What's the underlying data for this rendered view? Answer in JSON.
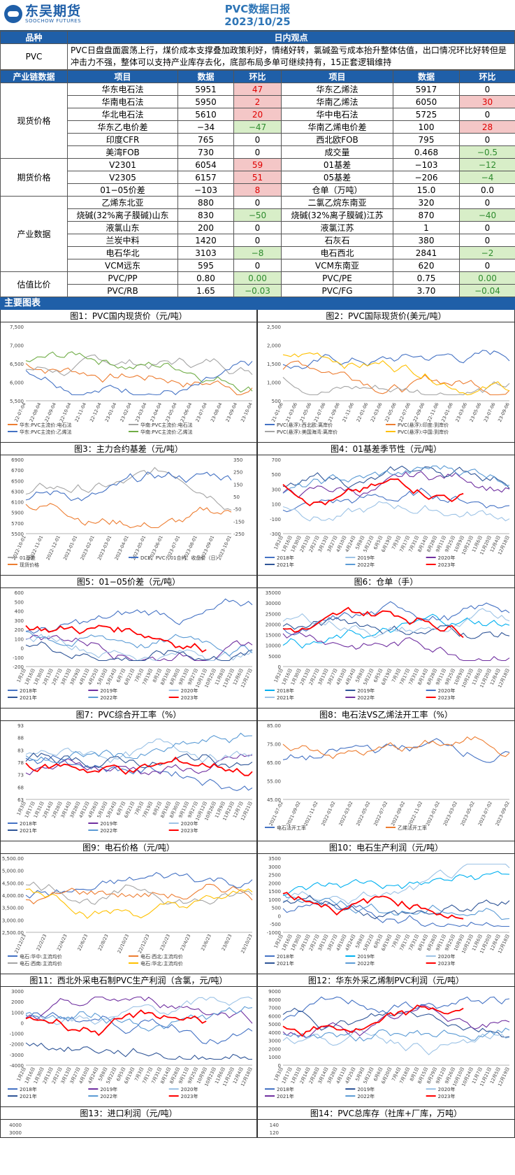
{
  "header": {
    "logo_cn": "东吴期货",
    "logo_en": "SOOCHOW FUTURES",
    "title": "PVC数据日报",
    "date": "2023/10/25"
  },
  "view": {
    "col1": "品种",
    "col2": "日内观点",
    "product": "PVC",
    "text": "PVC日盘盘面震荡上行，煤价成本支撑叠加政策利好，情绪好转，氯碱盈亏成本抬升整体估值，出口情况环比好转但是冲击力不强，整体可以支持产业库存去化，底部布局多单可继续持有，15正套逻辑维持"
  },
  "table": {
    "headers": [
      "产业链数据",
      "项目",
      "数据",
      "环比",
      "项目",
      "数据",
      "环比"
    ],
    "groups": [
      {
        "name": "现货价格",
        "rows": [
          [
            "华东电石法",
            "5951",
            "47",
            "up",
            "华东乙烯法",
            "5917",
            "0",
            ""
          ],
          [
            "华南电石法",
            "5950",
            "2",
            "up",
            "华南乙烯法",
            "6050",
            "30",
            "up"
          ],
          [
            "华北电石法",
            "5610",
            "20",
            "up",
            "华中电石法",
            "5725",
            "0",
            ""
          ],
          [
            "华东乙电价差",
            "−34",
            "−47",
            "down",
            "华南乙烯电价差",
            "100",
            "28",
            "up"
          ],
          [
            "印度CFR",
            "765",
            "0",
            "",
            "西北欧FOB",
            "795",
            "0",
            ""
          ],
          [
            "美湾FOB",
            "730",
            "0",
            "",
            "成交量",
            "0.468",
            "−0.5",
            "down"
          ]
        ]
      },
      {
        "name": "期货价格",
        "rows": [
          [
            "V2301",
            "6054",
            "59",
            "up",
            "01基差",
            "−103",
            "−12",
            "down"
          ],
          [
            "V2305",
            "6157",
            "51",
            "up",
            "05基差",
            "−206",
            "−4",
            "down"
          ],
          [
            "01−05价差",
            "−103",
            "8",
            "up",
            "仓单（万吨）",
            "15.0",
            "0.0",
            ""
          ]
        ]
      },
      {
        "name": "产业数据",
        "rows": [
          [
            "乙烯东北亚",
            "880",
            "0",
            "",
            "二氯乙烷东南亚",
            "320",
            "0",
            ""
          ],
          [
            "烧碱(32%离子膜碱)山东",
            "830",
            "−50",
            "down",
            "烧碱(32%离子膜碱)江苏",
            "870",
            "−40",
            "down"
          ],
          [
            "液氯山东",
            "200",
            "0",
            "",
            "液氯江苏",
            "1",
            "0",
            ""
          ],
          [
            "兰炭中料",
            "1420",
            "0",
            "",
            "石灰石",
            "380",
            "0",
            ""
          ],
          [
            "电石华北",
            "3103",
            "−8",
            "down",
            "电石西北",
            "2841",
            "−2",
            "down"
          ],
          [
            "VCM远东",
            "595",
            "0",
            "",
            "VCM东南亚",
            "620",
            "0",
            ""
          ]
        ]
      },
      {
        "name": "估值比价",
        "rows": [
          [
            "PVC/PP",
            "0.80",
            "0.00",
            "down",
            "PVC/PE",
            "0.75",
            "0.00",
            "down"
          ],
          [
            "PVC/RB",
            "1.65",
            "−0.03",
            "down",
            "PVC/FG",
            "3.70",
            "−0.04",
            "down"
          ]
        ]
      }
    ]
  },
  "section": "主要图表",
  "charts": [
    {
      "title": "图1：PVC国内现货价（元/吨）",
      "yticks": [
        "7,500",
        "7,000",
        "6,500",
        "6,000",
        "5,500"
      ],
      "xticks": [
        "22-07-04",
        "22-08-04",
        "22-09-04",
        "22-10-04",
        "22-11-04",
        "22-12-04",
        "23-01-04",
        "23-02-04",
        "23-03-04",
        "23-04-04",
        "23-05-04",
        "23-06-04",
        "23-07-04",
        "23-08-04",
        "23-09-04",
        "23-10-04"
      ],
      "legend": [
        "华东:PVC主流价:电石法",
        "华南:PVC主流价:电石法",
        "华东:PVC主流价:乙烯法",
        "华南:PVC主流价:乙烯法"
      ],
      "colors": [
        "#ED7D31",
        "#A5A5A5",
        "#4472C4",
        "#70AD47"
      ]
    },
    {
      "title": "图2：PVC国际现货价(美元/吨）",
      "yticks": [
        "2,500",
        "2,000",
        "1,500",
        "1,000",
        "500"
      ],
      "xticks": [
        "21-01-06",
        "21-03-06",
        "21-05-06",
        "21-07-06",
        "21-09-06",
        "21-11-06",
        "22-01-06",
        "22-03-06",
        "22-05-06",
        "22-07-06",
        "22-09-06",
        "22-11-06",
        "23-01-06",
        "23-03-06",
        "23-05-06",
        "23-07-06",
        "23-09-06"
      ],
      "legend": [
        "PVC(悬浮):西北欧:离岸价",
        "PVC(悬浮):印度:到岸价",
        "PVC(悬浮):美国海湾:离岸价",
        "PVC(悬浮):中国:到岸价"
      ],
      "colors": [
        "#4472C4",
        "#ED7D31",
        "#A5A5A5",
        "#FFC000"
      ]
    },
    {
      "title": "图3：主力合约基差（元/吨）",
      "yticks": [
        "6900",
        "6700",
        "6500",
        "6300",
        "6100",
        "5900",
        "5700",
        "5500"
      ],
      "y2ticks": [
        "350",
        "250",
        "150",
        "50",
        "-50",
        "-150",
        "-250"
      ],
      "xticks": [
        "2022-10-01",
        "2022-11-01",
        "2022-12-01",
        "2023-01-01",
        "2023-02-01",
        "2023-03-01",
        "2023-04-01",
        "2023-05-01",
        "2023-06-01",
        "2023-07-01",
        "2023-08-01",
        "2023-09-01",
        "2023-10-01"
      ],
      "legend": [
        "01基差",
        "DCE：PVC：01合约：收盘价（日）",
        "现货价格"
      ],
      "colors": [
        "#A5A5A5",
        "#4472C4",
        "#ED7D31"
      ]
    },
    {
      "title": "图4：01基差季节性（元/吨）",
      "yticks": [
        "700",
        "500",
        "300",
        "100",
        "-100",
        "-300"
      ],
      "xticks": [
        "1月2日",
        "1月16日",
        "1月30日",
        "2月13日",
        "2月27日",
        "3月13日",
        "3月27日",
        "4月10日",
        "4月24日",
        "5月8日",
        "5月22日",
        "6月5日",
        "6月19日",
        "7月3日",
        "7月17日",
        "7月31日",
        "8月14日",
        "8月28日",
        "9月11日",
        "9月25日",
        "10月9日",
        "10月23日",
        "11月6日",
        "11月20日",
        "12月4日",
        "12月18日"
      ],
      "legend": [
        "2018年",
        "2019年",
        "2020年",
        "2021年",
        "2022年",
        "2023年"
      ],
      "colors": [
        "#4472C4",
        "#9DC3E6",
        "#7030A0",
        "#2F5597",
        "#5B9BD5",
        "#FF0000"
      ]
    },
    {
      "title": "图5：01−05价差（元/吨）",
      "yticks": [
        "600",
        "500",
        "400",
        "300",
        "200",
        "100",
        "0",
        "-100",
        "-200"
      ],
      "xticks": [
        "1月2日",
        "1月16日",
        "1月30日",
        "2月13日",
        "2月27日",
        "3月13日",
        "3月29日",
        "4月11日",
        "4月25日",
        "5月10日",
        "5月24日",
        "6月7日",
        "6月21日",
        "7月5日",
        "7月19日",
        "8月2日",
        "8月16日",
        "8月30日",
        "9月13日",
        "9月27日",
        "10月11日",
        "10月25日",
        "11月8日",
        "11月22日",
        "12月6日",
        "12月27日"
      ],
      "legend": [
        "2018年",
        "2019年",
        "2020年",
        "2021年",
        "2022年",
        "2023年"
      ],
      "colors": [
        "#4472C4",
        "#7030A0",
        "#9DC3E6",
        "#2F5597",
        "#5B9BD5",
        "#FF0000"
      ]
    },
    {
      "title": "图6：仓单（手）",
      "yticks": [
        "35000",
        "30000",
        "25000",
        "20000",
        "15000",
        "10000",
        "5000",
        "0"
      ],
      "xticks": [
        "1月2日",
        "1月16日",
        "1月30日",
        "2月13日",
        "2月27日",
        "3月13日",
        "3月27日",
        "4月10日",
        "4月24日",
        "5月8日",
        "5月22日",
        "6月5日",
        "6月19日",
        "7月3日",
        "7月17日",
        "7月31日",
        "8月14日",
        "8月28日",
        "9月11日",
        "9月25日",
        "10月9日",
        "10月23日",
        "11月6日",
        "11月20日",
        "12月4日",
        "12月18日"
      ],
      "legend": [
        "2018年",
        "2019年",
        "2020年",
        "2021年",
        "2022年",
        "2023年"
      ],
      "colors": [
        "#00B0F0",
        "#2F5597",
        "#4472C4",
        "#9DC3E6",
        "#7030A0",
        "#FF0000"
      ]
    },
    {
      "title": "图7：PVC综合开工率（%）",
      "yticks": [
        "93",
        "88",
        "83",
        "78",
        "73",
        "68",
        "63"
      ],
      "xticks": [
        "1月3日",
        "1月17日",
        "1月31日",
        "2月14日",
        "2月28日",
        "3月14日",
        "3月28日",
        "4月12日",
        "4月26日",
        "5月10日",
        "5月24日",
        "6月7日",
        "6月21日",
        "7月5日",
        "7月19日",
        "8月2日",
        "8月16日",
        "8月30日",
        "9月13日",
        "9月27日",
        "10月12日",
        "10月26日",
        "11月9日",
        "11月23日",
        "12月7日",
        "12月21日"
      ],
      "legend": [
        "2018年",
        "2019年",
        "2020年",
        "2021年",
        "2022年",
        "2023年"
      ],
      "colors": [
        "#4472C4",
        "#7030A0",
        "#9DC3E6",
        "#2F5597",
        "#5B9BD5",
        "#FF0000"
      ]
    },
    {
      "title": "图8：电石法VS乙烯法开工率（%）",
      "yticks": [
        "85.00",
        "75.00",
        "65.00",
        "55.00",
        "45.00"
      ],
      "xticks": [
        "2021-07-02",
        "2021-09-02",
        "2021-11-02",
        "2022-01-02",
        "2022-03-02",
        "2022-05-02",
        "2022-07-02",
        "2022-09-02",
        "2022-11-02",
        "2023-01-02",
        "2023-03-02",
        "2023-05-02",
        "2023-07-02",
        "2023-09-02"
      ],
      "legend": [
        "电石法开工率",
        "乙烯法开工率"
      ],
      "colors": [
        "#4472C4",
        "#ED7D31"
      ]
    },
    {
      "title": "图9：电石价格（元/吨）",
      "yticks": [
        "5,500.00",
        "5,000.00",
        "4,500.00",
        "4,000.00",
        "3,500.00",
        "3,000.00",
        "2,500.00"
      ],
      "xticks": [
        "21/12/23",
        "22/2/23",
        "22/4/23",
        "22/6/23",
        "22/8/23",
        "22/10/23",
        "22/12/23",
        "23/2/23",
        "23/4/23",
        "23/6/23",
        "23/8/23",
        "23/10/23"
      ],
      "legend": [
        "电石:华中:主流均价",
        "电石:西北:主流均价",
        "电石:西南:主流均价",
        "电石:华北:主流均价"
      ],
      "colors": [
        "#4472C4",
        "#ED7D31",
        "#A5A5A5",
        "#FFC000"
      ]
    },
    {
      "title": "图10：电石生产利润（元/吨）",
      "yticks": [
        "3500",
        "3000",
        "2500",
        "2000",
        "1500",
        "1000",
        "500",
        "0",
        "-500",
        "-1000"
      ],
      "xticks": [
        "1月2日",
        "1月16日",
        "1月30日",
        "2月13日",
        "2月27日",
        "3月13日",
        "3月27日",
        "4月10日",
        "4月24日",
        "5月8日",
        "5月22日",
        "6月5日",
        "6月19日",
        "7月3日",
        "7月17日",
        "7月31日",
        "8月14日",
        "8月28日",
        "9月11日",
        "9月25日",
        "10月9日",
        "10月23日",
        "11月6日",
        "11月20日",
        "12月4日",
        "12月18日"
      ],
      "legend": [
        "2018年",
        "2019年",
        "2020年",
        "2021年",
        "2022年",
        "2023年"
      ],
      "colors": [
        "#4472C4",
        "#00B0F0",
        "#9DC3E6",
        "#2F5597",
        "#5B9BD5",
        "#FF0000"
      ]
    },
    {
      "title": "图11：西北外采电石制PVC生产利润（含氯，元/吨）",
      "yticks": [
        "3000",
        "2000",
        "1000",
        "0",
        "-1000",
        "-2000",
        "-3000",
        "-4000"
      ],
      "xticks": [
        "1月2日",
        "1月16日",
        "1月30日",
        "2月13日",
        "2月27日",
        "3月13日",
        "3月27日",
        "4月10日",
        "4月24日",
        "5月8日",
        "5月22日",
        "6月5日",
        "6月19日",
        "7月3日",
        "7月17日",
        "7月31日",
        "8月14日",
        "8月28日",
        "9月11日",
        "9月25日",
        "10月9日",
        "10月23日",
        "11月6日",
        "11月20日",
        "12月4日",
        "12月18日"
      ],
      "legend": [
        "2018年",
        "2019年",
        "2020年",
        "2021年",
        "2022年",
        "2023年"
      ],
      "colors": [
        "#4472C4",
        "#7030A0",
        "#9DC3E6",
        "#2F5597",
        "#5B9BD5",
        "#FF0000"
      ]
    },
    {
      "title": "图12：华东外采乙烯制PVC利润（元/吨）",
      "yticks": [
        "9000",
        "8000",
        "7000",
        "6000",
        "5000",
        "4000",
        "3000",
        "2000",
        "1000",
        "0"
      ],
      "xticks": [
        "1月3日",
        "1月17日",
        "1月31日",
        "2月14日",
        "2月28日",
        "3月14日",
        "3月28日",
        "4月11日",
        "4月25日",
        "5月9日",
        "5月23日",
        "6月6日",
        "6月20日",
        "7月4日",
        "7月18日",
        "8月1日",
        "8月15日",
        "8月29日",
        "9月12日",
        "9月26日",
        "10月10日",
        "10月24日",
        "11月7日",
        "11月21日",
        "12月5日",
        "12月19日"
      ],
      "legend": [
        "2018年",
        "2019年",
        "2020年",
        "2021年",
        "2022年",
        "2023年"
      ],
      "colors": [
        "#4472C4",
        "#2F5597",
        "#9DC3E6",
        "#7030A0",
        "#5B9BD5",
        "#FF0000"
      ]
    }
  ],
  "tail": [
    {
      "title": "图13：进口利润（元/吨）",
      "yticks": [
        "4000",
        "3000"
      ]
    },
    {
      "title": "图14：PVC总库存（社库+厂库，万吨）",
      "yticks": [
        "140",
        "120"
      ]
    }
  ]
}
